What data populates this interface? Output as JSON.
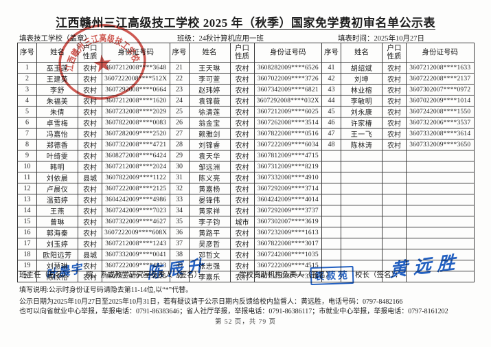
{
  "title": "江西赣州三江高级技工学校 2025 年（秋季）国家免学费初审名单公示表",
  "header": {
    "school_label": "填表技工学校（盖章）",
    "class_label": "班级：24秋计算机应用一班",
    "date_label": "填表时间：2025年10月27日"
  },
  "stamp": {
    "text": "江西赣州三江高级技工学校",
    "star": "★"
  },
  "colors": {
    "stamp_red": "#c5342c",
    "ink_blue": "#2462c4"
  },
  "table": {
    "column_headers": [
      "序号",
      "姓名",
      "户口性质",
      "身份证号码"
    ],
    "row_count": 20,
    "groups": [
      {
        "rows": [
          [
            "1",
            "巫玉莲",
            "农村",
            "3607212008****3648"
          ],
          [
            "2",
            "王建英",
            "农村",
            "3607222008****512X"
          ],
          [
            "3",
            "李舒",
            "农村",
            "3607292008****0664"
          ],
          [
            "4",
            "朱福美",
            "农村",
            "3607212008****1620"
          ],
          [
            "5",
            "朱倩",
            "农村",
            "3607232008****2029"
          ],
          [
            "6",
            "卓雪梅",
            "农村",
            "3607822008****0083"
          ],
          [
            "7",
            "冯嘉怡",
            "农村",
            "3607282009****2520"
          ],
          [
            "8",
            "郑德香",
            "农村",
            "3607322008****4721"
          ],
          [
            "9",
            "叶绮雯",
            "农村",
            "3608272008****6424"
          ],
          [
            "10",
            "韩明",
            "农村",
            "3607212008****2024"
          ],
          [
            "11",
            "刘依晨",
            "县城",
            "3607822009****1122"
          ],
          [
            "12",
            "卢晨仪",
            "农村",
            "3607222008****2125"
          ],
          [
            "13",
            "温茹婷",
            "农村",
            "3604242009****4986"
          ],
          [
            "14",
            "王燕",
            "农村",
            "3607242009****7023"
          ],
          [
            "15",
            "曾琳",
            "农村",
            "3607322009****4627"
          ],
          [
            "16",
            "郭海秦",
            "农村",
            "3607222009****608X"
          ],
          [
            "17",
            "刘玉婷",
            "农村",
            "3607212008****1243"
          ],
          [
            "18",
            "欧阳远芳",
            "县城",
            "3607332009****0041"
          ],
          [
            "19",
            "刘慧琳",
            "农村",
            "3607222009****4823"
          ],
          [
            "20",
            "陈欣怡",
            "农村",
            "3607022009****2225"
          ]
        ]
      },
      {
        "rows": [
          [
            "21",
            "王天琳",
            "农村",
            "3608282009****6526"
          ],
          [
            "22",
            "李可萱",
            "农村",
            "3607022009****3726"
          ],
          [
            "23",
            "赵玮婷",
            "农村",
            "3607342009****6821"
          ],
          [
            "24",
            "袁锦薇",
            "农村",
            "3607292008****032X"
          ],
          [
            "25",
            "徐清莲",
            "农村",
            "3607212009****6025"
          ],
          [
            "26",
            "翁金宝",
            "农村",
            "3607262008****3514"
          ],
          [
            "27",
            "赖雅剑",
            "农村",
            "3607822008****0516"
          ],
          [
            "28",
            "刘锦睿",
            "农村",
            "3607222009****6034"
          ],
          [
            "29",
            "袁天华",
            "农村",
            "3607812009****4715"
          ],
          [
            "30",
            "邹远洲",
            "农村",
            "3607312009****8219"
          ],
          [
            "31",
            "陈义亮",
            "农村",
            "3607332008****4910"
          ],
          [
            "32",
            "黄嘉杨",
            "农村",
            "3607292009****3714"
          ],
          [
            "33",
            "晏锋伟",
            "农村",
            "3604242009****4014"
          ],
          [
            "34",
            "黄家祥",
            "农村",
            "3607292009****3737"
          ],
          [
            "35",
            "李子钧",
            "城市",
            "3607302007****3619"
          ],
          [
            "36",
            "黄路平",
            "农村",
            "3607232009****1613"
          ],
          [
            "37",
            "吴彦哲",
            "农村",
            "3607822008****3017"
          ],
          [
            "38",
            "邓哲文",
            "农村",
            "3607242008****1035"
          ],
          [
            "39",
            "张志强",
            "农村",
            "3607222009****4515"
          ],
          [
            "40",
            "李嘉乐",
            "农村",
            "3607322009****3316"
          ]
        ]
      },
      {
        "rows": [
          [
            "41",
            "胡绍斌",
            "农村",
            "3607212008****1633"
          ],
          [
            "42",
            "刘坤",
            "农村",
            "3607222008****2137"
          ],
          [
            "43",
            "林业榕",
            "农村",
            "3607302007****0972"
          ],
          [
            "44",
            "李敏明",
            "农村",
            "3607022009****1014"
          ],
          [
            "45",
            "刘永康",
            "农村",
            "3607242008****1550"
          ],
          [
            "46",
            "许家椿",
            "农村",
            "3607322006****3537"
          ],
          [
            "47",
            "王一飞",
            "农村",
            "3607332008****3614"
          ],
          [
            "48",
            "陈林涛",
            "农村",
            "3607332009****3650"
          ],
          [
            "",
            "",
            "",
            ""
          ],
          [
            "",
            "",
            "",
            ""
          ],
          [
            "",
            "",
            "",
            ""
          ],
          [
            "",
            "",
            "",
            ""
          ],
          [
            "",
            "",
            "",
            ""
          ],
          [
            "",
            "",
            "",
            ""
          ],
          [
            "",
            "",
            "",
            ""
          ],
          [
            "",
            "",
            "",
            ""
          ],
          [
            "",
            "",
            "",
            ""
          ],
          [
            "",
            "",
            "",
            ""
          ],
          [
            "",
            "",
            "",
            ""
          ],
          [
            "",
            "",
            "",
            ""
          ]
        ]
      }
    ]
  },
  "signatures": {
    "class_teacher_label": "班主任（签名）：",
    "class_teacher_sign": "叶晨宇",
    "dept_head_label": "院、系或教学研究室负责人（签名）：",
    "dept_head_sign": "陈辰升",
    "aid_org_label": "学校资助机构负责人（签名）",
    "aid_org_sign": "袁菽苑",
    "principal_label": "校长（签名）：",
    "principal_sign": "黄远胜"
  },
  "notes": {
    "line1": "填写说明:公示时身份证号码请隐去第11-14位,以“*”代替。",
    "line2": "公示日期为2025年10月27日至2025年10月31日，若有疑议请于公示日期内反馈给校内监督人：黄远胜，电话号码：0797-8482166",
    "line3": "也可以向省就业中心举报，举报电话：0791-86383646；省人社厅举报，举报电话：0791-86386117；市就业中心举报，举报电话：0797-8161202"
  },
  "footer": {
    "page_info": "第 52 页，共 79 页"
  }
}
